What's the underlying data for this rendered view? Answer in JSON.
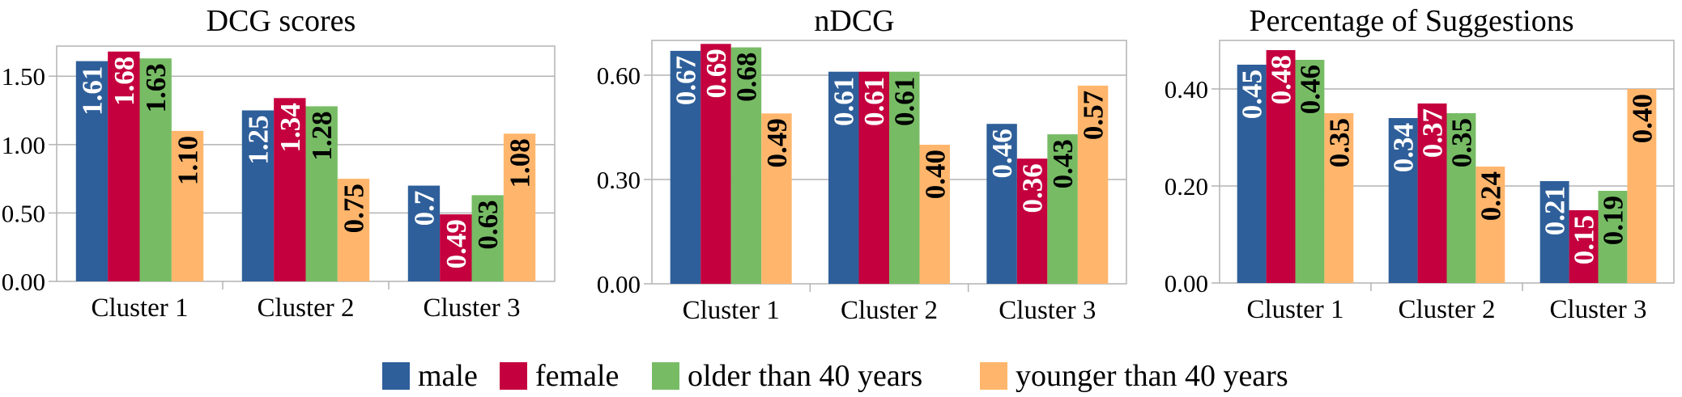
{
  "chart_data": [
    {
      "type": "bar",
      "title": "DCG scores",
      "categories": [
        "Cluster 1",
        "Cluster 2",
        "Cluster 3"
      ],
      "series": [
        {
          "name": "male",
          "values": [
            1.61,
            1.25,
            0.7
          ],
          "labels": [
            "1.61",
            "1.25",
            "0.7"
          ]
        },
        {
          "name": "female",
          "values": [
            1.68,
            1.34,
            0.49
          ],
          "labels": [
            "1.68",
            "1.34",
            "0.49"
          ]
        },
        {
          "name": "older than 40 years",
          "values": [
            1.63,
            1.28,
            0.63
          ],
          "labels": [
            "1.63",
            "1.28",
            "0.63"
          ]
        },
        {
          "name": "younger than 40 years",
          "values": [
            1.1,
            0.75,
            1.08
          ],
          "labels": [
            "1.10",
            "0.75",
            "1.08"
          ]
        }
      ],
      "ylim": [
        0,
        1.72
      ],
      "yticks": [
        0,
        0.5,
        1.0,
        1.5
      ],
      "ytick_labels": [
        "0.00",
        "0.50",
        "1.00",
        "1.50"
      ],
      "grid": true
    },
    {
      "type": "bar",
      "title": "nDCG",
      "categories": [
        "Cluster 1",
        "Cluster 2",
        "Cluster 3"
      ],
      "series": [
        {
          "name": "male",
          "values": [
            0.67,
            0.61,
            0.46
          ],
          "labels": [
            "0.67",
            "0.61",
            "0.46"
          ]
        },
        {
          "name": "female",
          "values": [
            0.69,
            0.61,
            0.36
          ],
          "labels": [
            "0.69",
            "0.61",
            "0.36"
          ]
        },
        {
          "name": "older than 40 years",
          "values": [
            0.68,
            0.61,
            0.43
          ],
          "labels": [
            "0.68",
            "0.61",
            "0.43"
          ]
        },
        {
          "name": "younger than 40 years",
          "values": [
            0.49,
            0.4,
            0.57
          ],
          "labels": [
            "0.49",
            "0.40",
            "0.57"
          ]
        }
      ],
      "ylim": [
        0,
        0.7
      ],
      "yticks": [
        0,
        0.3,
        0.6
      ],
      "ytick_labels": [
        "0.00",
        "0.30",
        "0.60"
      ],
      "grid": true
    },
    {
      "type": "bar",
      "title": "Percentage of Suggestions",
      "categories": [
        "Cluster 1",
        "Cluster 2",
        "Cluster 3"
      ],
      "series": [
        {
          "name": "male",
          "values": [
            0.45,
            0.34,
            0.21
          ],
          "labels": [
            "0.45",
            "0.34",
            "0.21"
          ]
        },
        {
          "name": "female",
          "values": [
            0.48,
            0.37,
            0.15
          ],
          "labels": [
            "0.48",
            "0.37",
            "0.15"
          ]
        },
        {
          "name": "older than 40 years",
          "values": [
            0.46,
            0.35,
            0.19
          ],
          "labels": [
            "0.46",
            "0.35",
            "0.19"
          ]
        },
        {
          "name": "younger than 40 years",
          "values": [
            0.35,
            0.24,
            0.4
          ],
          "labels": [
            "0.35",
            "0.24",
            "0.40"
          ]
        }
      ],
      "ylim": [
        0,
        0.5
      ],
      "yticks": [
        0,
        0.2,
        0.4
      ],
      "ytick_labels": [
        "0.00",
        "0.20",
        "0.40"
      ],
      "grid": true
    }
  ],
  "legend": {
    "placement": "bottom-center",
    "items": [
      {
        "name": "male",
        "color": "#2e5f9a"
      },
      {
        "name": "female",
        "color": "#c4003e"
      },
      {
        "name": "older than 40 years",
        "color": "#77bc65"
      },
      {
        "name": "younger than 40 years",
        "color": "#ffb66c"
      }
    ]
  },
  "label_colors": [
    "#ffffff",
    "#ffffff",
    "#000000",
    "#000000"
  ]
}
